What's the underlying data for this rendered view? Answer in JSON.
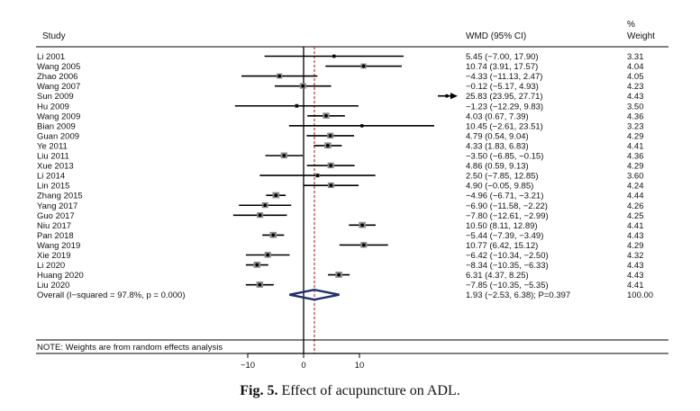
{
  "chart_data": {
    "type": "forest",
    "headers": {
      "study": "Study",
      "effect": "WMD (95% CI)",
      "weight_line1": "%",
      "weight_line2": "Weight"
    },
    "studies": [
      {
        "name": "Li 2001",
        "est": 5.45,
        "lo": -7.0,
        "hi": 17.9,
        "ci": "5.45 (−7.00, 17.90)",
        "weight": "3.31"
      },
      {
        "name": "Wang 2005",
        "est": 10.74,
        "lo": 3.91,
        "hi": 17.57,
        "ci": "10.74 (3.91, 17.57)",
        "weight": "4.04"
      },
      {
        "name": "Zhao 2006",
        "est": -4.33,
        "lo": -11.13,
        "hi": 2.47,
        "ci": "−4.33 (−11.13, 2.47)",
        "weight": "4.05"
      },
      {
        "name": "Wang 2007",
        "est": -0.12,
        "lo": -5.17,
        "hi": 4.93,
        "ci": "−0.12 (−5.17, 4.93)",
        "weight": "4.23"
      },
      {
        "name": "Sun 2009",
        "est": 25.83,
        "lo": 23.95,
        "hi": 27.71,
        "ci": "25.83 (23.95, 27.71)",
        "weight": "4.43"
      },
      {
        "name": "Hu 2009",
        "est": -1.23,
        "lo": -12.29,
        "hi": 9.83,
        "ci": "−1.23 (−12.29, 9.83)",
        "weight": "3.50"
      },
      {
        "name": "Wang 2009",
        "est": 4.03,
        "lo": 0.67,
        "hi": 7.39,
        "ci": "4.03 (0.67, 7.39)",
        "weight": "4.36"
      },
      {
        "name": "Bian 2009",
        "est": 10.45,
        "lo": -2.61,
        "hi": 23.51,
        "ci": "10.45 (−2.61, 23.51)",
        "weight": "3.23"
      },
      {
        "name": "Guan 2009",
        "est": 4.79,
        "lo": 0.54,
        "hi": 9.04,
        "ci": "4.79 (0.54, 9.04)",
        "weight": "4.29"
      },
      {
        "name": "Ye 2011",
        "est": 4.33,
        "lo": 1.83,
        "hi": 6.83,
        "ci": "4.33 (1.83, 6.83)",
        "weight": "4.41"
      },
      {
        "name": "Liu 2011",
        "est": -3.5,
        "lo": -6.85,
        "hi": -0.15,
        "ci": "−3.50 (−6.85, −0.15)",
        "weight": "4.36"
      },
      {
        "name": "Xue 2013",
        "est": 4.86,
        "lo": 0.59,
        "hi": 9.13,
        "ci": "4.86 (0.59, 9.13)",
        "weight": "4.29"
      },
      {
        "name": "Li 2014",
        "est": 2.5,
        "lo": -7.85,
        "hi": 12.85,
        "ci": "2.50 (−7.85, 12.85)",
        "weight": "3.60"
      },
      {
        "name": "Lin 2015",
        "est": 4.9,
        "lo": -0.05,
        "hi": 9.85,
        "ci": "4.90 (−0.05, 9.85)",
        "weight": "4.24"
      },
      {
        "name": "Zhang 2015",
        "est": -4.96,
        "lo": -6.71,
        "hi": -3.21,
        "ci": "−4.96 (−6.71, −3.21)",
        "weight": "4.44"
      },
      {
        "name": "Yang 2017",
        "est": -6.9,
        "lo": -11.58,
        "hi": -2.22,
        "ci": "−6.90 (−11.58, −2.22)",
        "weight": "4.26"
      },
      {
        "name": "Guo 2017",
        "est": -7.8,
        "lo": -12.61,
        "hi": -2.99,
        "ci": "−7.80 (−12.61, −2.99)",
        "weight": "4.25"
      },
      {
        "name": "Niu 2017",
        "est": 10.5,
        "lo": 8.11,
        "hi": 12.89,
        "ci": "10.50 (8.11, 12.89)",
        "weight": "4.41"
      },
      {
        "name": "Pan 2018",
        "est": -5.44,
        "lo": -7.39,
        "hi": -3.49,
        "ci": "−5.44 (−7.39, −3.49)",
        "weight": "4.43"
      },
      {
        "name": "Wang 2019",
        "est": 10.77,
        "lo": 6.42,
        "hi": 15.12,
        "ci": "10.77 (6.42, 15.12)",
        "weight": "4.29"
      },
      {
        "name": "Xie 2019",
        "est": -6.42,
        "lo": -10.34,
        "hi": -2.5,
        "ci": "−6.42 (−10.34, −2.50)",
        "weight": "4.32"
      },
      {
        "name": "Li 2020",
        "est": -8.34,
        "lo": -10.35,
        "hi": -6.33,
        "ci": "−8.34 (−10.35, −6.33)",
        "weight": "4.43"
      },
      {
        "name": "Huang 2020",
        "est": 6.31,
        "lo": 4.37,
        "hi": 8.25,
        "ci": "6.31 (4.37, 8.25)",
        "weight": "4.43"
      },
      {
        "name": "Liu 2020",
        "est": -7.85,
        "lo": -10.35,
        "hi": -5.35,
        "ci": "−7.85 (−10.35, −5.35)",
        "weight": "4.41"
      }
    ],
    "overall": {
      "label": "Overall  (I−squared = 97.8%, p = 0.000)",
      "est": 1.93,
      "lo": -2.53,
      "hi": 6.38,
      "ci": "1.93 (−2.53, 6.38); P=0.397",
      "weight": "100.00"
    },
    "note": "NOTE: Weights are from random effects analysis",
    "x_ticks": [
      {
        "value": -10,
        "label": "−10"
      },
      {
        "value": 0,
        "label": "0"
      },
      {
        "value": 10,
        "label": "10"
      }
    ],
    "null_value": 0,
    "colors": {
      "line": "#000000",
      "overall_diamond": "#1f2f6b",
      "pooled_line": "#b22222"
    }
  },
  "caption": {
    "label": "Fig. 5.",
    "text": "Effect of acupuncture on ADL."
  }
}
